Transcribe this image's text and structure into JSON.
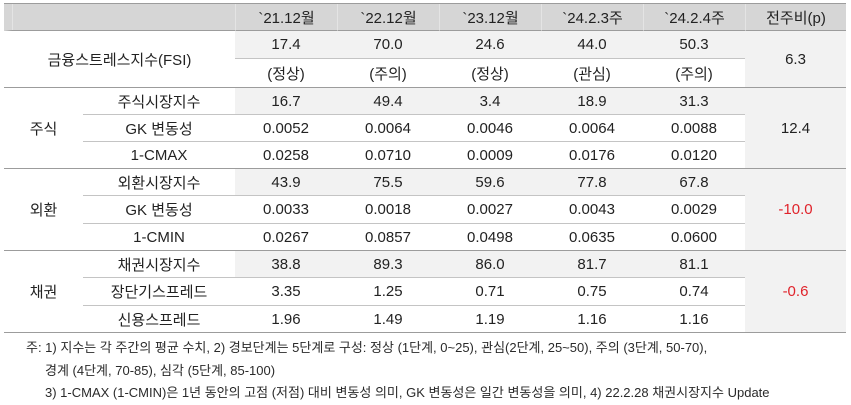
{
  "header": {
    "columns": [
      "",
      "",
      "`21.12월",
      "`22.12월",
      "`23.12월",
      "`24.2.3주",
      "`24.2.4주",
      "전주비(p)"
    ]
  },
  "fsi": {
    "label": "금융스트레스지수(FSI)",
    "values": [
      "17.4",
      "70.0",
      "24.6",
      "44.0",
      "50.3"
    ],
    "status": [
      "(정상)",
      "(주의)",
      "(정상)",
      "(관심)",
      "(주의)"
    ],
    "change": "6.3"
  },
  "groups": [
    {
      "category": "주식",
      "change": "12.4",
      "rows": [
        {
          "label": "주식시장지수",
          "values": [
            "16.7",
            "49.4",
            "3.4",
            "18.9",
            "31.3"
          ]
        },
        {
          "label": "GK 변동성",
          "values": [
            "0.0052",
            "0.0064",
            "0.0046",
            "0.0064",
            "0.0088"
          ]
        },
        {
          "label": "1-CMAX",
          "values": [
            "0.0258",
            "0.0710",
            "0.0009",
            "0.0176",
            "0.0120"
          ]
        }
      ]
    },
    {
      "category": "외환",
      "change": "-10.0",
      "rows": [
        {
          "label": "외환시장지수",
          "values": [
            "43.9",
            "75.5",
            "59.6",
            "77.8",
            "67.8"
          ]
        },
        {
          "label": "GK 변동성",
          "values": [
            "0.0033",
            "0.0018",
            "0.0027",
            "0.0043",
            "0.0029"
          ]
        },
        {
          "label": "1-CMIN",
          "values": [
            "0.0267",
            "0.0857",
            "0.0498",
            "0.0635",
            "0.0600"
          ]
        }
      ]
    },
    {
      "category": "채권",
      "change": "-0.6",
      "rows": [
        {
          "label": "채권시장지수",
          "values": [
            "38.8",
            "89.3",
            "86.0",
            "81.7",
            "81.1"
          ]
        },
        {
          "label": "장단기스프레드",
          "values": [
            "3.35",
            "1.25",
            "0.71",
            "0.75",
            "0.74"
          ]
        },
        {
          "label": "신용스프레드",
          "values": [
            "1.96",
            "1.49",
            "1.19",
            "1.16",
            "1.16"
          ]
        }
      ]
    }
  ],
  "footnotes": [
    "주: 1) 지수는 각 주간의 평균 수치, 2) 경보단계는 5단계로 구성: 정상 (1단계, 0~25), 관심(2단계, 25~50), 주의 (3단계, 50-70),",
    "경계 (4단계, 70-85), 심각 (5단계, 85-100)",
    "3) 1-CMAX (1-CMIN)은 1년 동안의 고점 (저점) 대비 변동성 의미, GK 변동성은 일간 변동성을 의미, 4) 22.2.28 채권시장지수 Update"
  ],
  "colors": {
    "header_bg": "#d6d6d6",
    "highlight_bg": "#f2f2f2",
    "negative_text": "#e0232b",
    "border": "#9c9c9c"
  }
}
